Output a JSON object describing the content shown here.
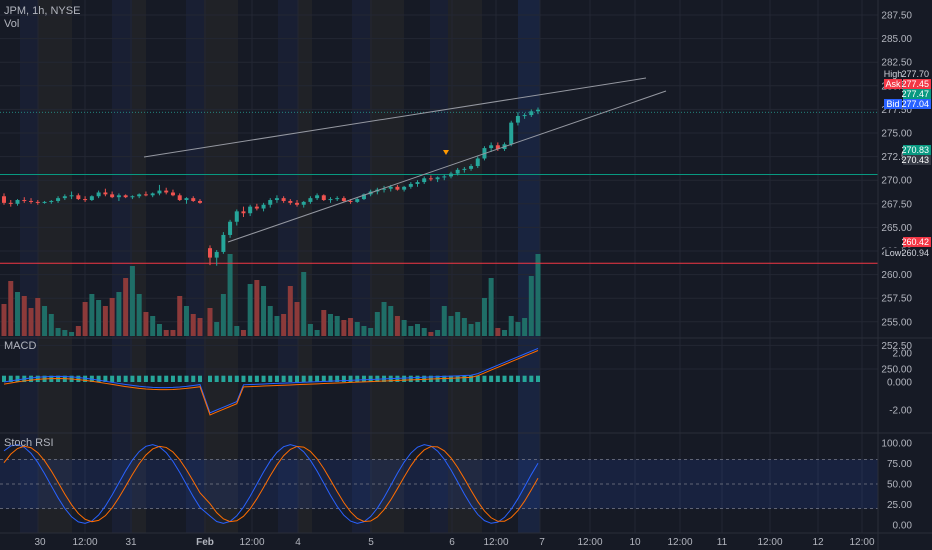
{
  "header": {
    "symbol_line": "JPM, 1h, NYSE",
    "volume_label": "Vol"
  },
  "price_axis": {
    "ticks": [
      "287.50",
      "285.00",
      "282.50",
      "280.00",
      "277.50",
      "275.00",
      "272.50",
      "270.00",
      "267.50",
      "265.00",
      "262.50",
      "260.00",
      "257.50",
      "255.00",
      "252.50",
      "250.00"
    ]
  },
  "price_tags": [
    {
      "label": "High",
      "value": "277.70",
      "label_bg": "#161a25",
      "value_bg": "#161a25",
      "color": "#d1d4dc"
    },
    {
      "label": "Ask",
      "value": "277.45",
      "label_bg": "#f23645",
      "value_bg": "#f23645",
      "color": "#ffffff"
    },
    {
      "label": "",
      "value": "277.47",
      "label_bg": "#089981",
      "value_bg": "#089981",
      "color": "#ffffff"
    },
    {
      "label": "Bid",
      "value": "277.04",
      "label_bg": "#2962ff",
      "value_bg": "#2962ff",
      "color": "#ffffff"
    },
    {
      "label": "",
      "value": "270.83",
      "label_bg": "#089981",
      "value_bg": "#089981",
      "color": "#ffffff"
    },
    {
      "label": "",
      "value": "270.43",
      "label_bg": "#363a45",
      "value_bg": "#363a45",
      "color": "#ffffff"
    },
    {
      "label": "",
      "value": "260.42",
      "label_bg": "#f23645",
      "value_bg": "#f23645",
      "color": "#ffffff"
    },
    {
      "label": "Low",
      "value": "260.94",
      "label_bg": "#161a25",
      "value_bg": "#161a25",
      "color": "#d1d4dc"
    }
  ],
  "macd_panel": {
    "title": "MACD",
    "ticks": [
      "2.00",
      "0.000",
      "-2.00"
    ]
  },
  "rsi_panel": {
    "title": "Stoch RSI",
    "ticks": [
      "100.00",
      "75.00",
      "50.00",
      "25.00",
      "0.00"
    ]
  },
  "time_axis": {
    "labels": [
      "30",
      "12:00",
      "31",
      "Feb",
      "12:00",
      "4",
      "5",
      "6",
      "12:00",
      "7",
      "12:00",
      "10",
      "12:00",
      "11",
      "12:00",
      "12",
      "12:00"
    ]
  },
  "colors": {
    "up": "#26a69a",
    "down": "#ef5350",
    "background": "#161a25",
    "grid": "#232733",
    "macd_line": "#2962ff",
    "signal_line": "#ff6d00"
  },
  "chart_data": {
    "type": "candlestick",
    "symbol": "JPM",
    "timeframe": "1h",
    "exchange": "NYSE",
    "ohlc": [
      [
        268.3,
        268.6,
        267.4,
        267.6
      ],
      [
        267.6,
        267.9,
        267.2,
        267.5
      ],
      [
        267.5,
        268.0,
        267.3,
        267.9
      ],
      [
        267.9,
        268.2,
        267.6,
        267.8
      ],
      [
        267.8,
        268.1,
        267.5,
        267.7
      ],
      [
        267.7,
        267.9,
        267.4,
        267.6
      ],
      [
        267.6,
        267.8,
        267.5,
        267.7
      ],
      [
        267.7,
        267.9,
        267.5,
        267.8
      ],
      [
        267.8,
        268.3,
        267.6,
        268.1
      ],
      [
        268.1,
        268.5,
        267.9,
        268.3
      ],
      [
        268.3,
        268.8,
        268.0,
        268.4
      ],
      [
        268.4,
        268.6,
        267.9,
        268.0
      ],
      [
        268.0,
        268.3,
        267.7,
        267.9
      ],
      [
        267.9,
        268.4,
        267.8,
        268.3
      ],
      [
        268.3,
        268.9,
        268.1,
        268.7
      ],
      [
        268.7,
        269.1,
        268.3,
        268.5
      ],
      [
        268.5,
        268.8,
        268.1,
        268.2
      ],
      [
        268.2,
        268.6,
        267.8,
        268.4
      ],
      [
        268.4,
        268.5,
        268.1,
        268.2
      ],
      [
        268.2,
        268.4,
        268.0,
        268.3
      ],
      [
        268.3,
        268.6,
        268.1,
        268.5
      ],
      [
        268.5,
        268.8,
        268.3,
        268.4
      ],
      [
        268.4,
        268.7,
        268.2,
        268.6
      ],
      [
        268.6,
        269.5,
        268.4,
        268.9
      ],
      [
        268.9,
        269.2,
        268.5,
        268.7
      ],
      [
        268.7,
        269.0,
        268.3,
        268.4
      ],
      [
        268.4,
        268.6,
        267.8,
        267.9
      ],
      [
        267.9,
        268.2,
        267.5,
        268.1
      ],
      [
        268.1,
        268.3,
        267.7,
        267.8
      ],
      [
        267.8,
        268.0,
        267.5,
        267.6
      ],
      [
        262.8,
        263.1,
        261.0,
        261.8
      ],
      [
        261.8,
        262.6,
        260.94,
        262.4
      ],
      [
        262.4,
        264.5,
        262.2,
        264.2
      ],
      [
        264.2,
        265.8,
        263.9,
        265.6
      ],
      [
        265.6,
        266.9,
        265.2,
        266.7
      ],
      [
        266.7,
        267.2,
        266.1,
        266.5
      ],
      [
        266.5,
        267.4,
        266.2,
        267.2
      ],
      [
        267.2,
        267.5,
        266.8,
        267.0
      ],
      [
        267.0,
        267.6,
        266.7,
        267.4
      ],
      [
        267.4,
        268.1,
        267.1,
        267.9
      ],
      [
        267.9,
        268.4,
        267.6,
        268.1
      ],
      [
        268.1,
        268.3,
        267.6,
        267.8
      ],
      [
        267.8,
        268.0,
        267.4,
        267.6
      ],
      [
        267.6,
        267.9,
        267.2,
        267.4
      ],
      [
        267.4,
        267.8,
        267.1,
        267.7
      ],
      [
        267.7,
        268.3,
        267.5,
        268.1
      ],
      [
        268.1,
        268.6,
        267.9,
        268.4
      ],
      [
        268.4,
        268.5,
        267.8,
        267.9
      ],
      [
        267.9,
        268.2,
        267.6,
        268.0
      ],
      [
        268.0,
        268.3,
        267.8,
        268.1
      ],
      [
        268.1,
        268.3,
        267.7,
        267.8
      ],
      [
        267.8,
        268.0,
        267.5,
        267.7
      ],
      [
        267.7,
        268.1,
        267.6,
        268.0
      ],
      [
        268.0,
        268.6,
        267.9,
        268.5
      ],
      [
        268.5,
        269.0,
        268.3,
        268.8
      ],
      [
        268.8,
        269.2,
        268.5,
        269.0
      ],
      [
        269.0,
        269.4,
        268.7,
        269.1
      ],
      [
        269.1,
        269.5,
        268.8,
        269.3
      ],
      [
        269.3,
        269.5,
        268.9,
        269.0
      ],
      [
        269.0,
        269.4,
        268.8,
        269.3
      ],
      [
        269.3,
        269.8,
        269.1,
        269.6
      ],
      [
        269.6,
        270.0,
        269.3,
        269.8
      ],
      [
        269.8,
        270.4,
        269.6,
        270.2
      ],
      [
        270.2,
        270.5,
        269.9,
        270.1
      ],
      [
        270.1,
        270.4,
        269.8,
        270.3
      ],
      [
        270.3,
        270.6,
        270.0,
        270.4
      ],
      [
        270.4,
        270.9,
        270.2,
        270.7
      ],
      [
        270.7,
        271.3,
        270.5,
        271.1
      ],
      [
        271.1,
        271.4,
        270.8,
        271.2
      ],
      [
        271.2,
        271.7,
        271.0,
        271.5
      ],
      [
        271.5,
        272.5,
        271.3,
        272.3
      ],
      [
        272.3,
        273.6,
        272.1,
        273.4
      ],
      [
        273.4,
        274.0,
        273.0,
        273.7
      ],
      [
        273.7,
        274.0,
        273.1,
        273.3
      ],
      [
        273.3,
        274.0,
        273.1,
        273.8
      ],
      [
        273.8,
        276.3,
        273.6,
        276.1
      ],
      [
        276.1,
        277.2,
        275.8,
        276.8
      ],
      [
        276.8,
        277.1,
        276.5,
        276.9
      ],
      [
        276.9,
        277.5,
        276.7,
        277.3
      ],
      [
        277.3,
        277.7,
        277.0,
        277.47
      ]
    ],
    "volume": [
      32,
      55,
      44,
      40,
      28,
      38,
      30,
      22,
      8,
      6,
      4,
      10,
      34,
      42,
      36,
      30,
      38,
      44,
      58,
      70,
      42,
      24,
      20,
      12,
      6,
      6,
      40,
      30,
      22,
      18,
      28,
      14,
      42,
      82,
      10,
      6,
      52,
      56,
      50,
      30,
      20,
      22,
      50,
      34,
      64,
      12,
      6,
      26,
      22,
      20,
      16,
      18,
      14,
      10,
      8,
      24,
      34,
      30,
      20,
      16,
      10,
      12,
      8,
      4,
      6,
      30,
      20,
      24,
      18,
      12,
      14,
      38,
      58,
      8,
      6,
      20,
      14,
      18,
      60,
      82
    ],
    "rsi_bands": [
      20,
      80
    ],
    "macd_zero": 0,
    "resistance_line": 270.6,
    "support_line": 261.2
  }
}
